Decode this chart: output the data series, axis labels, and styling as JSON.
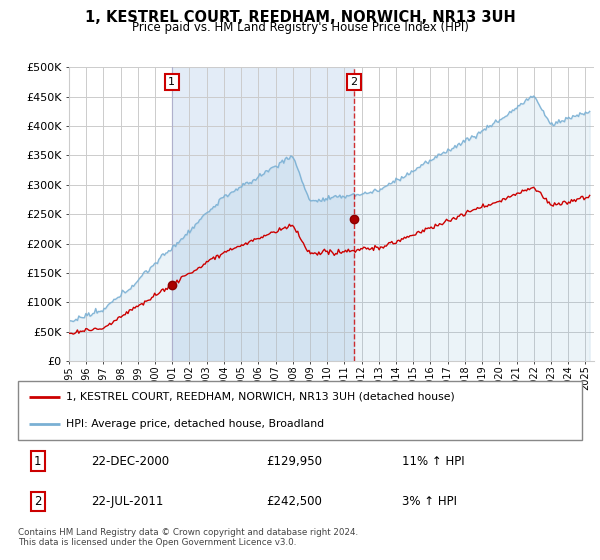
{
  "title": "1, KESTREL COURT, REEDHAM, NORWICH, NR13 3UH",
  "subtitle": "Price paid vs. HM Land Registry's House Price Index (HPI)",
  "ylabel_ticks": [
    "£0",
    "£50K",
    "£100K",
    "£150K",
    "£200K",
    "£250K",
    "£300K",
    "£350K",
    "£400K",
    "£450K",
    "£500K"
  ],
  "ytick_values": [
    0,
    50000,
    100000,
    150000,
    200000,
    250000,
    300000,
    350000,
    400000,
    450000,
    500000
  ],
  "ylim": [
    0,
    500000
  ],
  "xlim_start": 1995.0,
  "xlim_end": 2025.5,
  "sale1_date": 2000.97,
  "sale1_price": 129950,
  "sale1_label": "1",
  "sale2_date": 2011.55,
  "sale2_price": 242500,
  "sale2_label": "2",
  "line_color_property": "#cc0000",
  "line_color_hpi": "#7ab0d4",
  "fill_color_between_sales": "#dce8f5",
  "legend_property": "1, KESTREL COURT, REEDHAM, NORWICH, NR13 3UH (detached house)",
  "legend_hpi": "HPI: Average price, detached house, Broadland",
  "table_row1_num": "1",
  "table_row1_date": "22-DEC-2000",
  "table_row1_price": "£129,950",
  "table_row1_hpi": "11% ↑ HPI",
  "table_row2_num": "2",
  "table_row2_date": "22-JUL-2011",
  "table_row2_price": "£242,500",
  "table_row2_hpi": "3% ↑ HPI",
  "footnote": "Contains HM Land Registry data © Crown copyright and database right 2024.\nThis data is licensed under the Open Government Licence v3.0.",
  "background_color": "#ffffff",
  "grid_color": "#cccccc",
  "xtick_labels": [
    "1995",
    "1996",
    "1997",
    "1998",
    "1999",
    "2000",
    "2001",
    "2002",
    "2003",
    "2004",
    "2005",
    "2006",
    "2007",
    "2008",
    "2009",
    "2010",
    "2011",
    "2012",
    "2013",
    "2014",
    "2015",
    "2016",
    "2017",
    "2018",
    "2019",
    "2020",
    "2021",
    "2022",
    "2023",
    "2024",
    "2025"
  ]
}
